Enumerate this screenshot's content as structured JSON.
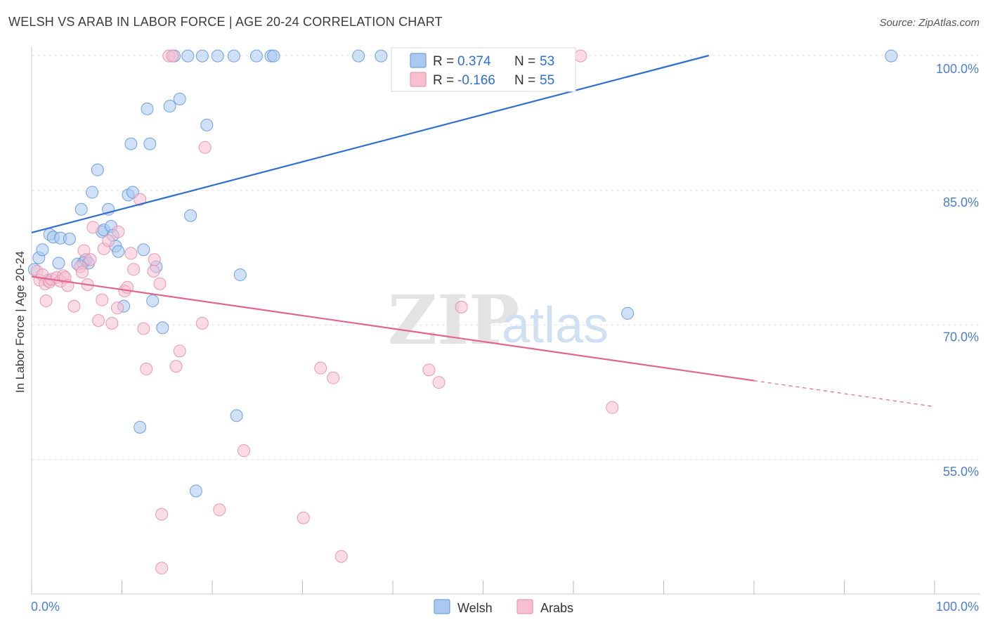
{
  "header": {
    "title": "WELSH VS ARAB IN LABOR FORCE | AGE 20-24 CORRELATION CHART",
    "source": "Source: ZipAtlas.com"
  },
  "watermark": {
    "zip": "ZIP",
    "atlas": "atlas"
  },
  "colors": {
    "welsh_fill": "#a9c9f0",
    "welsh_stroke": "#5b93d9",
    "welsh_line": "#2f6fd1",
    "arabs_fill": "#f7bfd0",
    "arabs_stroke": "#e58aa8",
    "arabs_line": "#e0668f",
    "grid": "#e2e2e2",
    "tick_text": "#4a7fd0"
  },
  "chart_data": {
    "type": "scatter",
    "title": "WELSH VS ARAB IN LABOR FORCE | AGE 20-24 CORRELATION CHART",
    "xlabel": "",
    "ylabel": "In Labor Force | Age 20-24",
    "xlim": [
      0,
      100
    ],
    "ylim": [
      40,
      101.5
    ],
    "x_tick_labels": [
      "0.0%",
      "100.0%"
    ],
    "y_ticks": [
      55,
      70,
      85,
      100
    ],
    "y_tick_labels": [
      "55.0%",
      "70.0%",
      "85.0%",
      "100.0%"
    ],
    "grid": true,
    "legend": {
      "position": "top-center",
      "entries": [
        {
          "r_label": "R =",
          "r_value": "0.374",
          "n_label": "N =",
          "n_value": "53"
        },
        {
          "r_label": "R =",
          "r_value": "-0.166",
          "n_label": "N =",
          "n_value": "55"
        }
      ]
    },
    "bottom_legend": [
      "Welsh",
      "Arabs"
    ],
    "series": [
      {
        "name": "Welsh",
        "trend": {
          "x0": 0,
          "y0": 80.3,
          "x1": 75,
          "y1": 100.0
        },
        "points": [
          [
            0.3,
            76.2
          ],
          [
            0.8,
            77.5
          ],
          [
            1.2,
            78.4
          ],
          [
            1.8,
            75.0
          ],
          [
            2.0,
            80.1
          ],
          [
            2.4,
            79.8
          ],
          [
            3.2,
            79.7
          ],
          [
            3.0,
            76.9
          ],
          [
            4.2,
            79.6
          ],
          [
            5.1,
            76.8
          ],
          [
            5.5,
            82.9
          ],
          [
            5.7,
            76.9
          ],
          [
            6.0,
            77.3
          ],
          [
            6.3,
            76.9
          ],
          [
            6.7,
            84.8
          ],
          [
            7.3,
            87.3
          ],
          [
            7.8,
            80.4
          ],
          [
            8.0,
            80.6
          ],
          [
            8.5,
            82.9
          ],
          [
            8.8,
            81.0
          ],
          [
            9.0,
            80.0
          ],
          [
            9.3,
            78.8
          ],
          [
            9.6,
            78.2
          ],
          [
            10.2,
            72.1
          ],
          [
            10.7,
            84.5
          ],
          [
            11.0,
            90.2
          ],
          [
            11.2,
            84.8
          ],
          [
            12.0,
            58.6
          ],
          [
            12.4,
            78.4
          ],
          [
            12.8,
            94.1
          ],
          [
            13.1,
            90.2
          ],
          [
            13.4,
            72.7
          ],
          [
            13.8,
            76.5
          ],
          [
            14.5,
            69.7
          ],
          [
            15.3,
            94.4
          ],
          [
            15.8,
            100.0
          ],
          [
            16.4,
            95.2
          ],
          [
            17.3,
            100.0
          ],
          [
            17.6,
            82.2
          ],
          [
            18.2,
            51.5
          ],
          [
            18.9,
            100.0
          ],
          [
            19.4,
            92.3
          ],
          [
            20.6,
            100.0
          ],
          [
            22.4,
            100.0
          ],
          [
            22.7,
            59.9
          ],
          [
            23.1,
            75.6
          ],
          [
            24.9,
            100.0
          ],
          [
            26.5,
            100.0
          ],
          [
            26.8,
            100.0
          ],
          [
            36.2,
            100.0
          ],
          [
            38.7,
            100.0
          ],
          [
            66.0,
            71.3
          ],
          [
            95.2,
            100.0
          ]
        ]
      },
      {
        "name": "Arabs",
        "trend": {
          "x0": 0,
          "y0": 75.4,
          "x1": 80,
          "y1": 63.8,
          "dash_to_x": 100,
          "dash_to_y": 60.9
        },
        "points": [
          [
            0.6,
            76.0
          ],
          [
            0.9,
            75.0
          ],
          [
            1.2,
            75.6
          ],
          [
            1.5,
            74.6
          ],
          [
            1.6,
            72.7
          ],
          [
            2.0,
            74.8
          ],
          [
            2.2,
            75.1
          ],
          [
            2.8,
            75.3
          ],
          [
            3.2,
            74.9
          ],
          [
            3.5,
            75.5
          ],
          [
            3.7,
            75.3
          ],
          [
            4.0,
            74.4
          ],
          [
            4.7,
            72.1
          ],
          [
            5.4,
            76.5
          ],
          [
            5.6,
            75.9
          ],
          [
            5.8,
            78.3
          ],
          [
            6.2,
            74.5
          ],
          [
            6.5,
            77.3
          ],
          [
            6.8,
            80.9
          ],
          [
            7.4,
            70.5
          ],
          [
            7.8,
            72.8
          ],
          [
            8.0,
            78.5
          ],
          [
            8.5,
            79.4
          ],
          [
            8.9,
            70.2
          ],
          [
            9.5,
            71.9
          ],
          [
            9.6,
            80.4
          ],
          [
            10.3,
            73.8
          ],
          [
            10.6,
            74.2
          ],
          [
            11.0,
            78.0
          ],
          [
            11.3,
            76.2
          ],
          [
            12.0,
            84.0
          ],
          [
            12.4,
            69.6
          ],
          [
            12.7,
            65.1
          ],
          [
            13.5,
            76.0
          ],
          [
            13.6,
            77.3
          ],
          [
            14.2,
            74.6
          ],
          [
            14.4,
            48.9
          ],
          [
            14.4,
            42.9
          ],
          [
            15.2,
            100.0
          ],
          [
            15.6,
            100.0
          ],
          [
            16.0,
            65.4
          ],
          [
            16.4,
            67.1
          ],
          [
            18.9,
            70.2
          ],
          [
            19.2,
            89.8
          ],
          [
            20.8,
            49.4
          ],
          [
            23.5,
            56.0
          ],
          [
            30.1,
            48.5
          ],
          [
            32.0,
            65.2
          ],
          [
            33.4,
            64.1
          ],
          [
            34.3,
            44.2
          ],
          [
            44.0,
            65.0
          ],
          [
            45.1,
            63.6
          ],
          [
            47.6,
            72.0
          ],
          [
            64.3,
            60.8
          ],
          [
            60.8,
            100.0
          ]
        ]
      }
    ]
  }
}
